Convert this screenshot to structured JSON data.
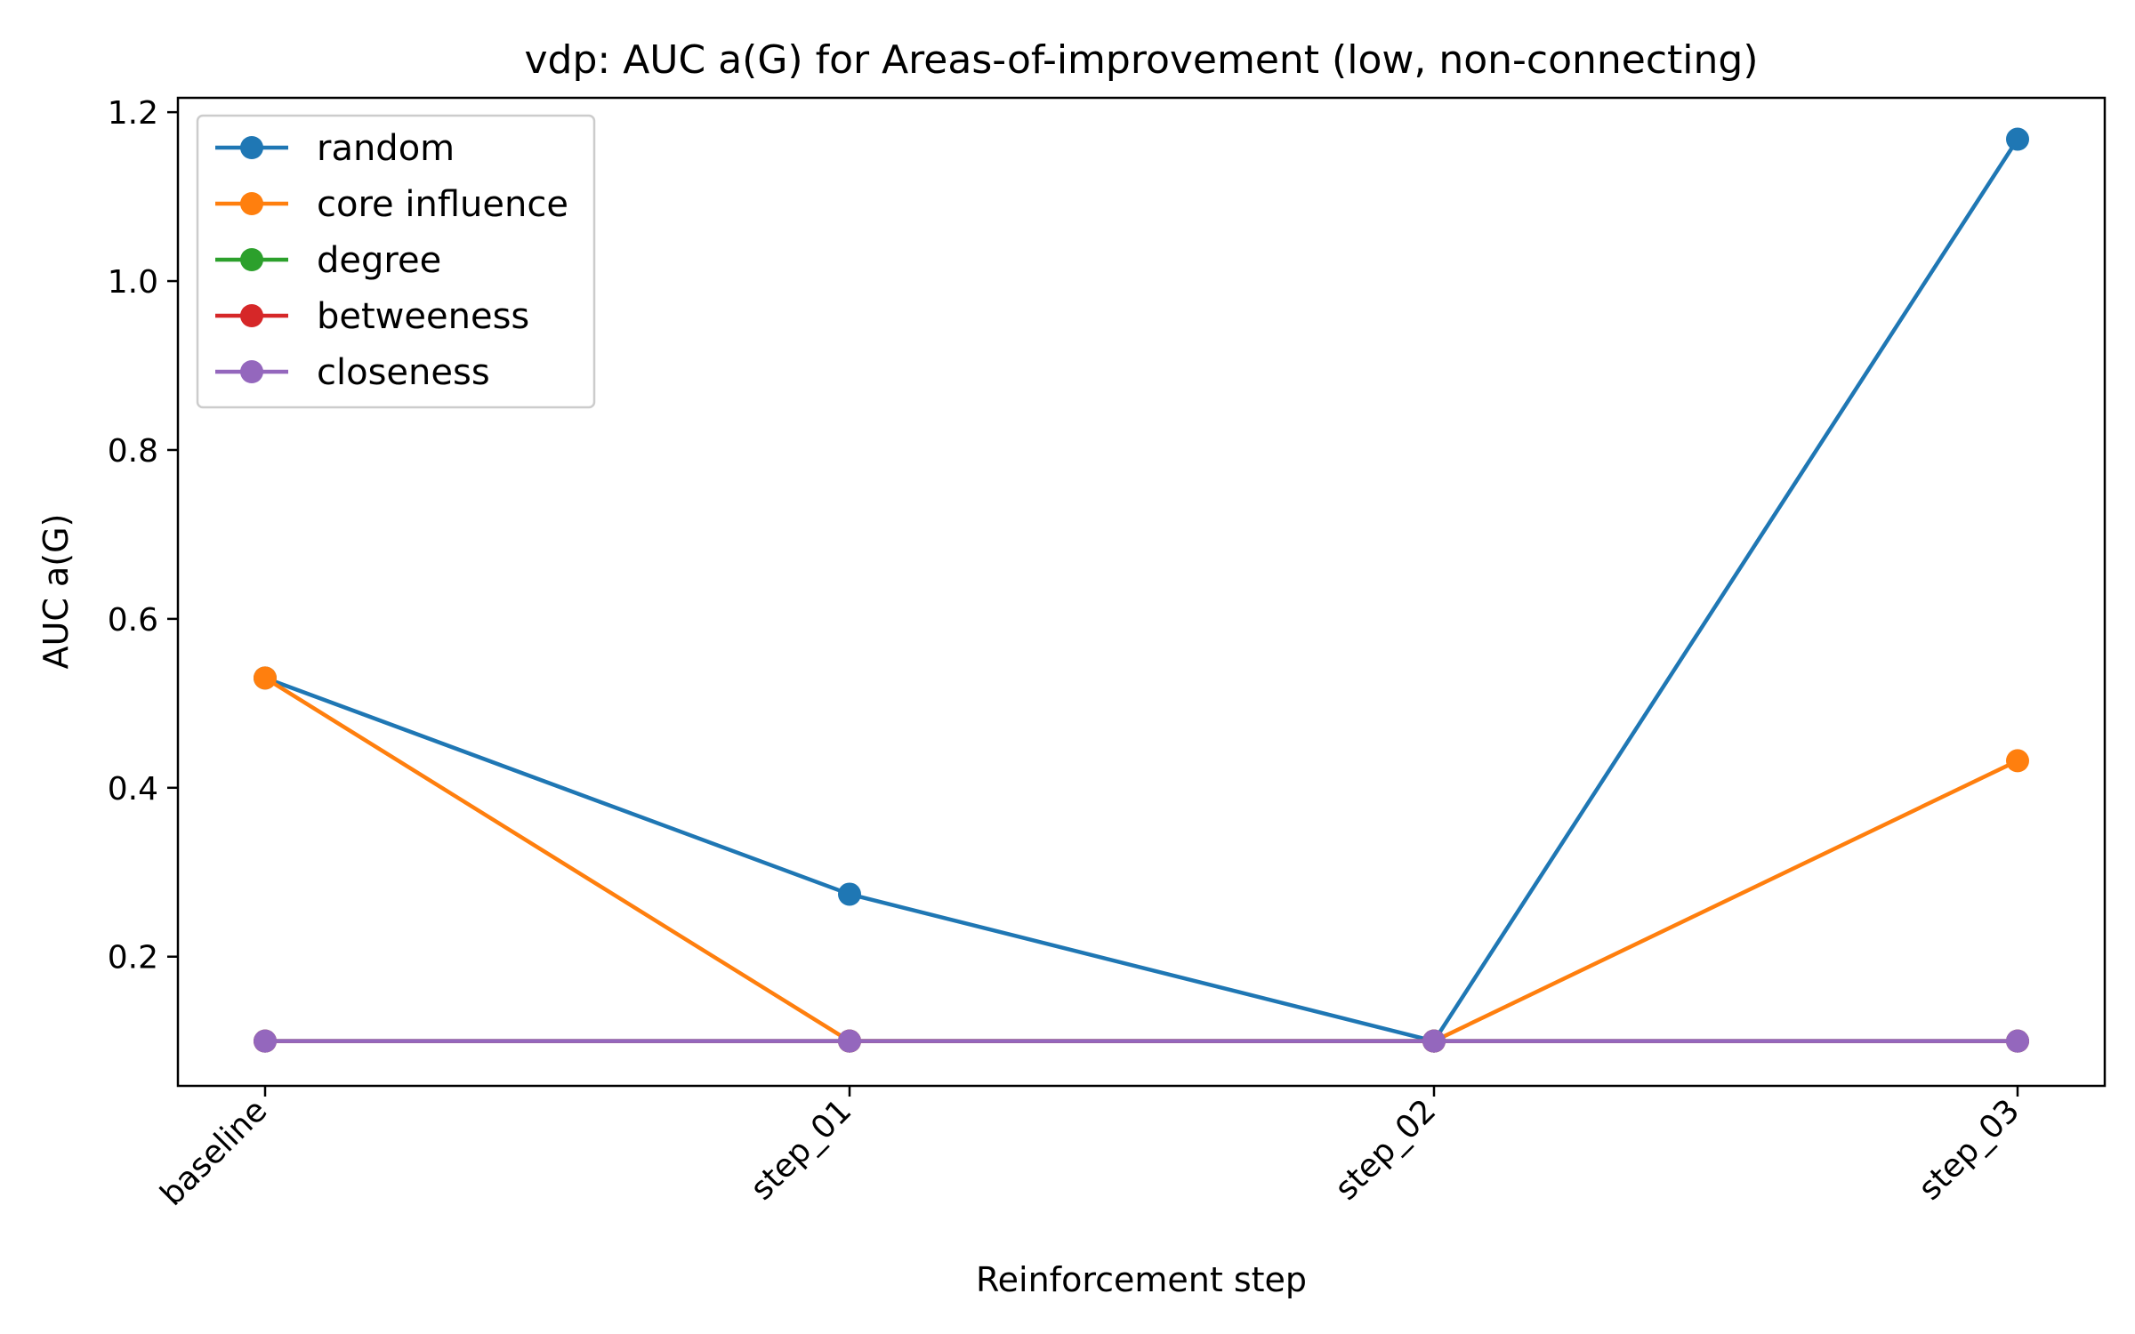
{
  "chart_data": {
    "type": "line",
    "title": "vdp: AUC a(G) for Areas-of-improvement (low, non-connecting)",
    "xlabel": "Reinforcement step",
    "ylabel": "AUC a(G)",
    "categories": [
      "baseline",
      "step_01",
      "step_02",
      "step_03"
    ],
    "ylim": [
      0.047,
      1.217
    ],
    "yticks": [
      0.2,
      0.4,
      0.6,
      0.8,
      1.0,
      1.2
    ],
    "ytick_labels": [
      "0.2",
      "0.4",
      "0.6",
      "0.8",
      "1.0",
      "1.2"
    ],
    "grid": false,
    "legend_position": "top-left",
    "series": [
      {
        "name": "random",
        "color": "#1f77b4",
        "values": [
          0.53,
          0.274,
          0.1,
          1.168
        ]
      },
      {
        "name": "core influence",
        "color": "#ff7f0e",
        "values": [
          0.53,
          0.1,
          0.1,
          0.432
        ]
      },
      {
        "name": "degree",
        "color": "#2ca02c",
        "values": [
          0.1,
          0.1,
          0.1,
          0.1
        ]
      },
      {
        "name": "betweeness",
        "color": "#d62728",
        "values": [
          0.1,
          0.1,
          0.1,
          0.1
        ]
      },
      {
        "name": "closeness",
        "color": "#9467bd",
        "values": [
          0.1,
          0.1,
          0.1,
          0.1
        ]
      }
    ]
  }
}
